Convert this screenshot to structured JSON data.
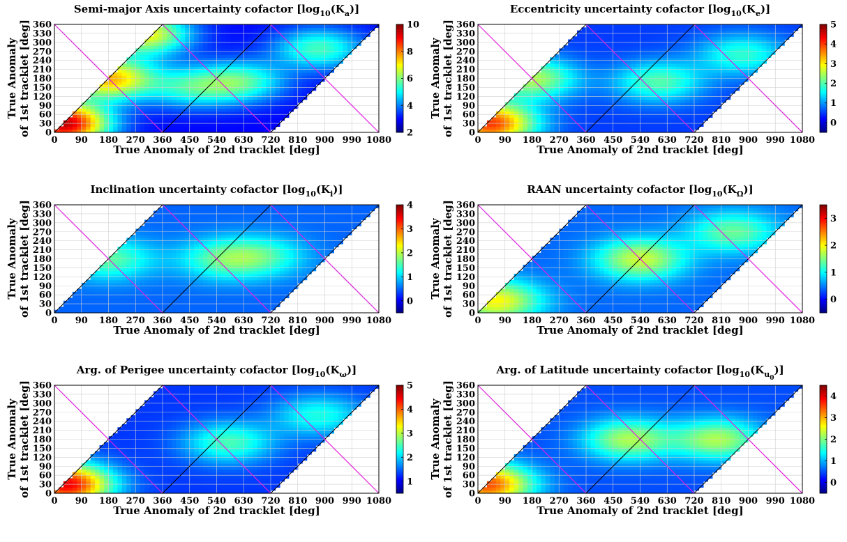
{
  "figure": {
    "xlabel": "True Anomaly of 2nd tracklet [deg]",
    "ylabel_line1": "True Anomaly",
    "ylabel_line2": "of 1st tracklet [deg]",
    "x_ticks": [
      "0",
      "90",
      "180",
      "270",
      "360",
      "450",
      "540",
      "630",
      "720",
      "810",
      "900",
      "990",
      "1080"
    ],
    "y_ticks": [
      "0",
      "30",
      "60",
      "90",
      "120",
      "150",
      "180",
      "210",
      "240",
      "270",
      "300",
      "330",
      "360"
    ],
    "xlim": [
      0,
      1080
    ],
    "ylim": [
      0,
      360
    ],
    "diagonal_line_color": "#000000",
    "antidiagonal_line_color": "#e020e0",
    "colormap": "jet"
  },
  "chart_data": [
    {
      "type": "heatmap",
      "title_main": "Semi-major Axis uncertainty cofactor [log",
      "title_sub": "10",
      "title_mid": "(K",
      "title_sub2": "a",
      "title_sub3": "",
      "title_end": ")]",
      "colorbar_range": [
        2,
        10
      ],
      "colorbar_ticks": [
        "2",
        "4",
        "6",
        "8",
        "10"
      ],
      "hotspots": [
        {
          "x": 30,
          "y": 30,
          "value": 9.5
        },
        {
          "x": 180,
          "y": 180,
          "value": 7.5
        },
        {
          "x": 300,
          "y": 330,
          "value": 7.0
        },
        {
          "x": 450,
          "y": 150,
          "value": 5.0
        },
        {
          "x": 620,
          "y": 170,
          "value": 5.5
        },
        {
          "x": 880,
          "y": 280,
          "value": 5.5
        }
      ],
      "baseline": 3.0
    },
    {
      "type": "heatmap",
      "title_main": "Eccentricity uncertainty cofactor [log",
      "title_sub": "10",
      "title_mid": "(K",
      "title_sub2": "e",
      "title_sub3": "",
      "title_end": ")]",
      "colorbar_range": [
        -0.5,
        5
      ],
      "colorbar_ticks": [
        "0",
        "1",
        "2",
        "3",
        "4",
        "5"
      ],
      "hotspots": [
        {
          "x": 40,
          "y": 30,
          "value": 4.0
        },
        {
          "x": 180,
          "y": 180,
          "value": 2.5
        },
        {
          "x": 600,
          "y": 170,
          "value": 2.0
        },
        {
          "x": 880,
          "y": 260,
          "value": 1.8
        }
      ],
      "baseline": 0.5
    },
    {
      "type": "heatmap",
      "title_main": "Inclination uncertainty cofactor [log",
      "title_sub": "10",
      "title_mid": "(K",
      "title_sub2": "i",
      "title_sub3": "",
      "title_end": ")]",
      "colorbar_range": [
        -0.5,
        4
      ],
      "colorbar_ticks": [
        "0",
        "1",
        "2",
        "3",
        "4"
      ],
      "hotspots": [
        {
          "x": 180,
          "y": 180,
          "value": 1.6
        },
        {
          "x": 560,
          "y": 180,
          "value": 1.5
        },
        {
          "x": 700,
          "y": 190,
          "value": 1.3
        }
      ],
      "baseline": 0.5
    },
    {
      "type": "heatmap",
      "title_main": "RAAN uncertainty cofactor [log",
      "title_sub": "10",
      "title_mid": "(K",
      "title_sub2": "Ω",
      "title_sub3": "",
      "title_end": ")]",
      "colorbar_range": [
        -0.5,
        3.5
      ],
      "colorbar_ticks": [
        "0",
        "1",
        "2",
        "3"
      ],
      "hotspots": [
        {
          "x": 60,
          "y": 40,
          "value": 2.0
        },
        {
          "x": 540,
          "y": 180,
          "value": 1.8
        },
        {
          "x": 850,
          "y": 270,
          "value": 1.4
        }
      ],
      "baseline": 0.4
    },
    {
      "type": "heatmap",
      "title_main": "Arg. of Perigee uncertainty cofactor [log",
      "title_sub": "10",
      "title_mid": "(K",
      "title_sub2": "ω",
      "title_sub3": "",
      "title_end": ")]",
      "colorbar_range": [
        0.5,
        5
      ],
      "colorbar_ticks": [
        "1",
        "2",
        "3",
        "4",
        "5"
      ],
      "hotspots": [
        {
          "x": 40,
          "y": 30,
          "value": 4.5
        },
        {
          "x": 580,
          "y": 170,
          "value": 2.5
        },
        {
          "x": 880,
          "y": 260,
          "value": 2.3
        }
      ],
      "baseline": 1.3
    },
    {
      "type": "heatmap",
      "title_main": "Arg. of Latitude uncertainty cofactor [log",
      "title_sub": "10",
      "title_mid": "(K",
      "title_sub2": "u",
      "title_sub3": "0",
      "title_end": ")]",
      "colorbar_range": [
        -0.5,
        4.5
      ],
      "colorbar_ticks": [
        "0",
        "1",
        "2",
        "3",
        "4"
      ],
      "hotspots": [
        {
          "x": 30,
          "y": 30,
          "value": 3.5
        },
        {
          "x": 500,
          "y": 180,
          "value": 2.2
        },
        {
          "x": 800,
          "y": 180,
          "value": 2.2
        }
      ],
      "baseline": 0.5
    }
  ]
}
